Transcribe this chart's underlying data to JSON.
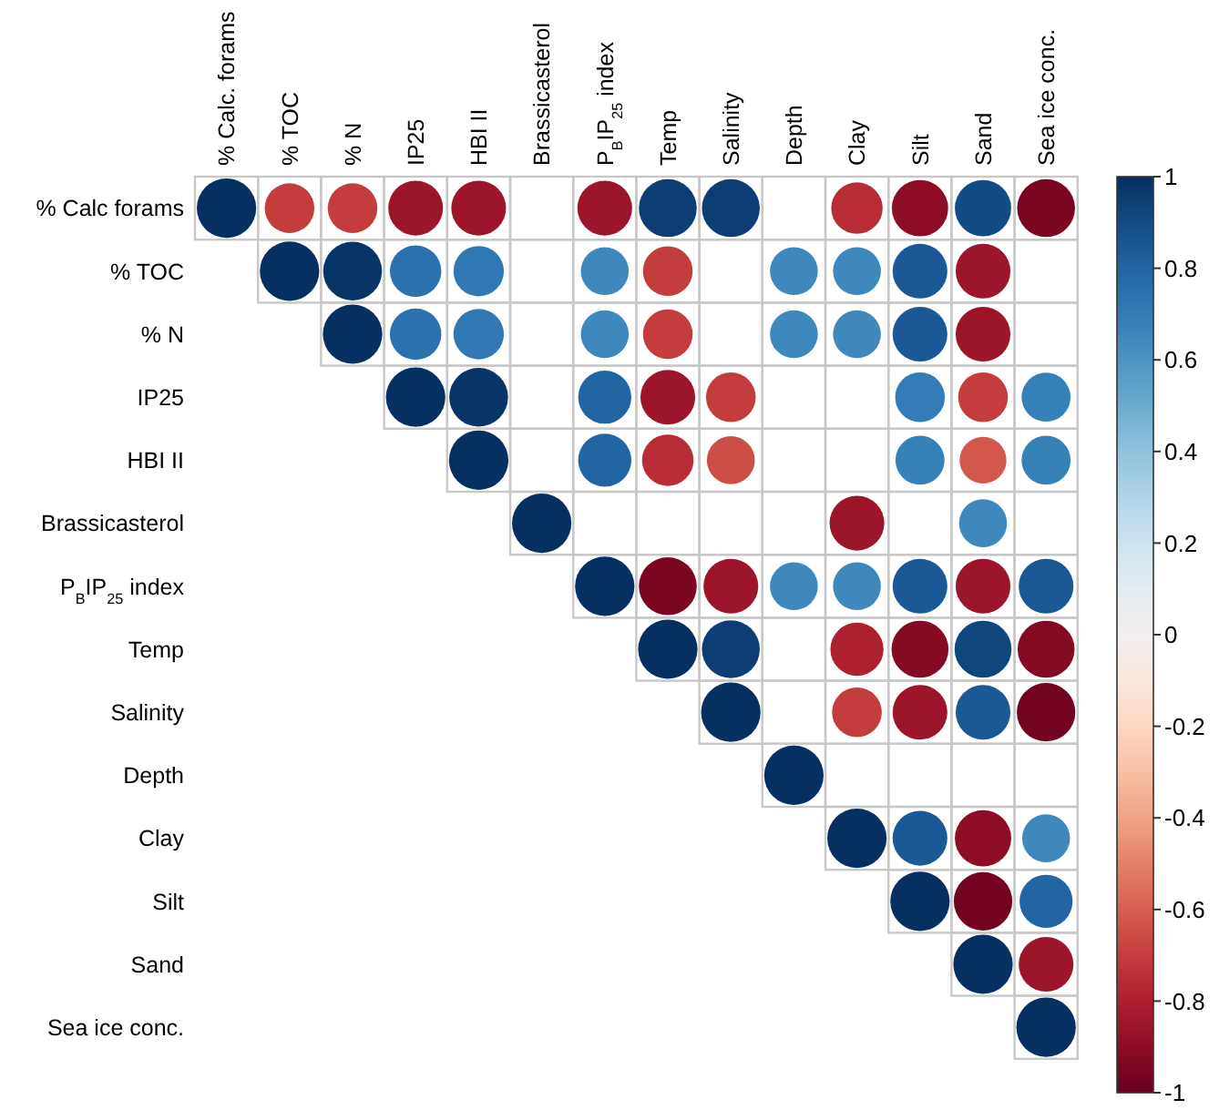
{
  "chart_data": {
    "type": "heatmap",
    "categories": [
      "% Calc. forams",
      "% TOC",
      "% N",
      "IP25",
      "HBI II",
      "Brassicasterol",
      "P$_{B}$IP$_{25}$ index",
      "Temp",
      "Salinity",
      "Depth",
      "Clay",
      "Silt",
      "Sand",
      "Sea ice conc."
    ],
    "y_categories": [
      "% Calc forams",
      "% TOC",
      "% N",
      "IP25",
      "HBI II",
      "Brassicasterol",
      "P$_{B}$IP$_{25}$ index",
      "Temp",
      "Salinity",
      "Depth",
      "Clay",
      "Silt",
      "Sand",
      "Sea ice conc."
    ],
    "cells": [
      [
        1,
        -0.7,
        -0.7,
        -0.85,
        -0.85,
        null,
        -0.85,
        0.95,
        0.95,
        null,
        -0.75,
        -0.9,
        0.9,
        -0.95
      ],
      [
        null,
        1,
        0.98,
        0.75,
        0.72,
        null,
        0.65,
        -0.7,
        null,
        0.65,
        0.65,
        0.85,
        -0.85,
        null
      ],
      [
        null,
        null,
        1,
        0.75,
        0.72,
        null,
        0.65,
        -0.7,
        null,
        0.65,
        0.65,
        0.85,
        -0.85,
        null
      ],
      [
        null,
        null,
        null,
        1,
        0.98,
        null,
        0.8,
        -0.85,
        -0.7,
        null,
        null,
        0.7,
        -0.7,
        0.68
      ],
      [
        null,
        null,
        null,
        null,
        1,
        null,
        0.8,
        -0.75,
        -0.65,
        null,
        null,
        0.68,
        -0.62,
        0.68
      ],
      [
        null,
        null,
        null,
        null,
        null,
        1,
        null,
        null,
        null,
        null,
        -0.85,
        null,
        0.65,
        null
      ],
      [
        null,
        null,
        null,
        null,
        null,
        null,
        1,
        -0.95,
        -0.85,
        0.65,
        0.65,
        0.85,
        -0.85,
        0.85
      ],
      [
        null,
        null,
        null,
        null,
        null,
        null,
        null,
        1,
        0.95,
        null,
        -0.8,
        -0.92,
        0.92,
        -0.92
      ],
      [
        null,
        null,
        null,
        null,
        null,
        null,
        null,
        null,
        1,
        null,
        -0.7,
        -0.85,
        0.85,
        -0.97
      ],
      [
        null,
        null,
        null,
        null,
        null,
        null,
        null,
        null,
        null,
        1,
        null,
        null,
        null,
        null
      ],
      [
        null,
        null,
        null,
        null,
        null,
        null,
        null,
        null,
        null,
        null,
        1,
        0.85,
        -0.9,
        0.65
      ],
      [
        null,
        null,
        null,
        null,
        null,
        null,
        null,
        null,
        null,
        null,
        null,
        1,
        -0.97,
        0.8
      ],
      [
        null,
        null,
        null,
        null,
        null,
        null,
        null,
        null,
        null,
        null,
        null,
        null,
        1,
        -0.85
      ],
      [
        null,
        null,
        null,
        null,
        null,
        null,
        null,
        null,
        null,
        null,
        null,
        null,
        null,
        1
      ]
    ],
    "clim": [
      -1,
      1
    ],
    "cticks": [
      1,
      0.8,
      0.6,
      0.4,
      0.2,
      0,
      -0.2,
      -0.4,
      -0.6,
      -0.8,
      -1
    ]
  }
}
